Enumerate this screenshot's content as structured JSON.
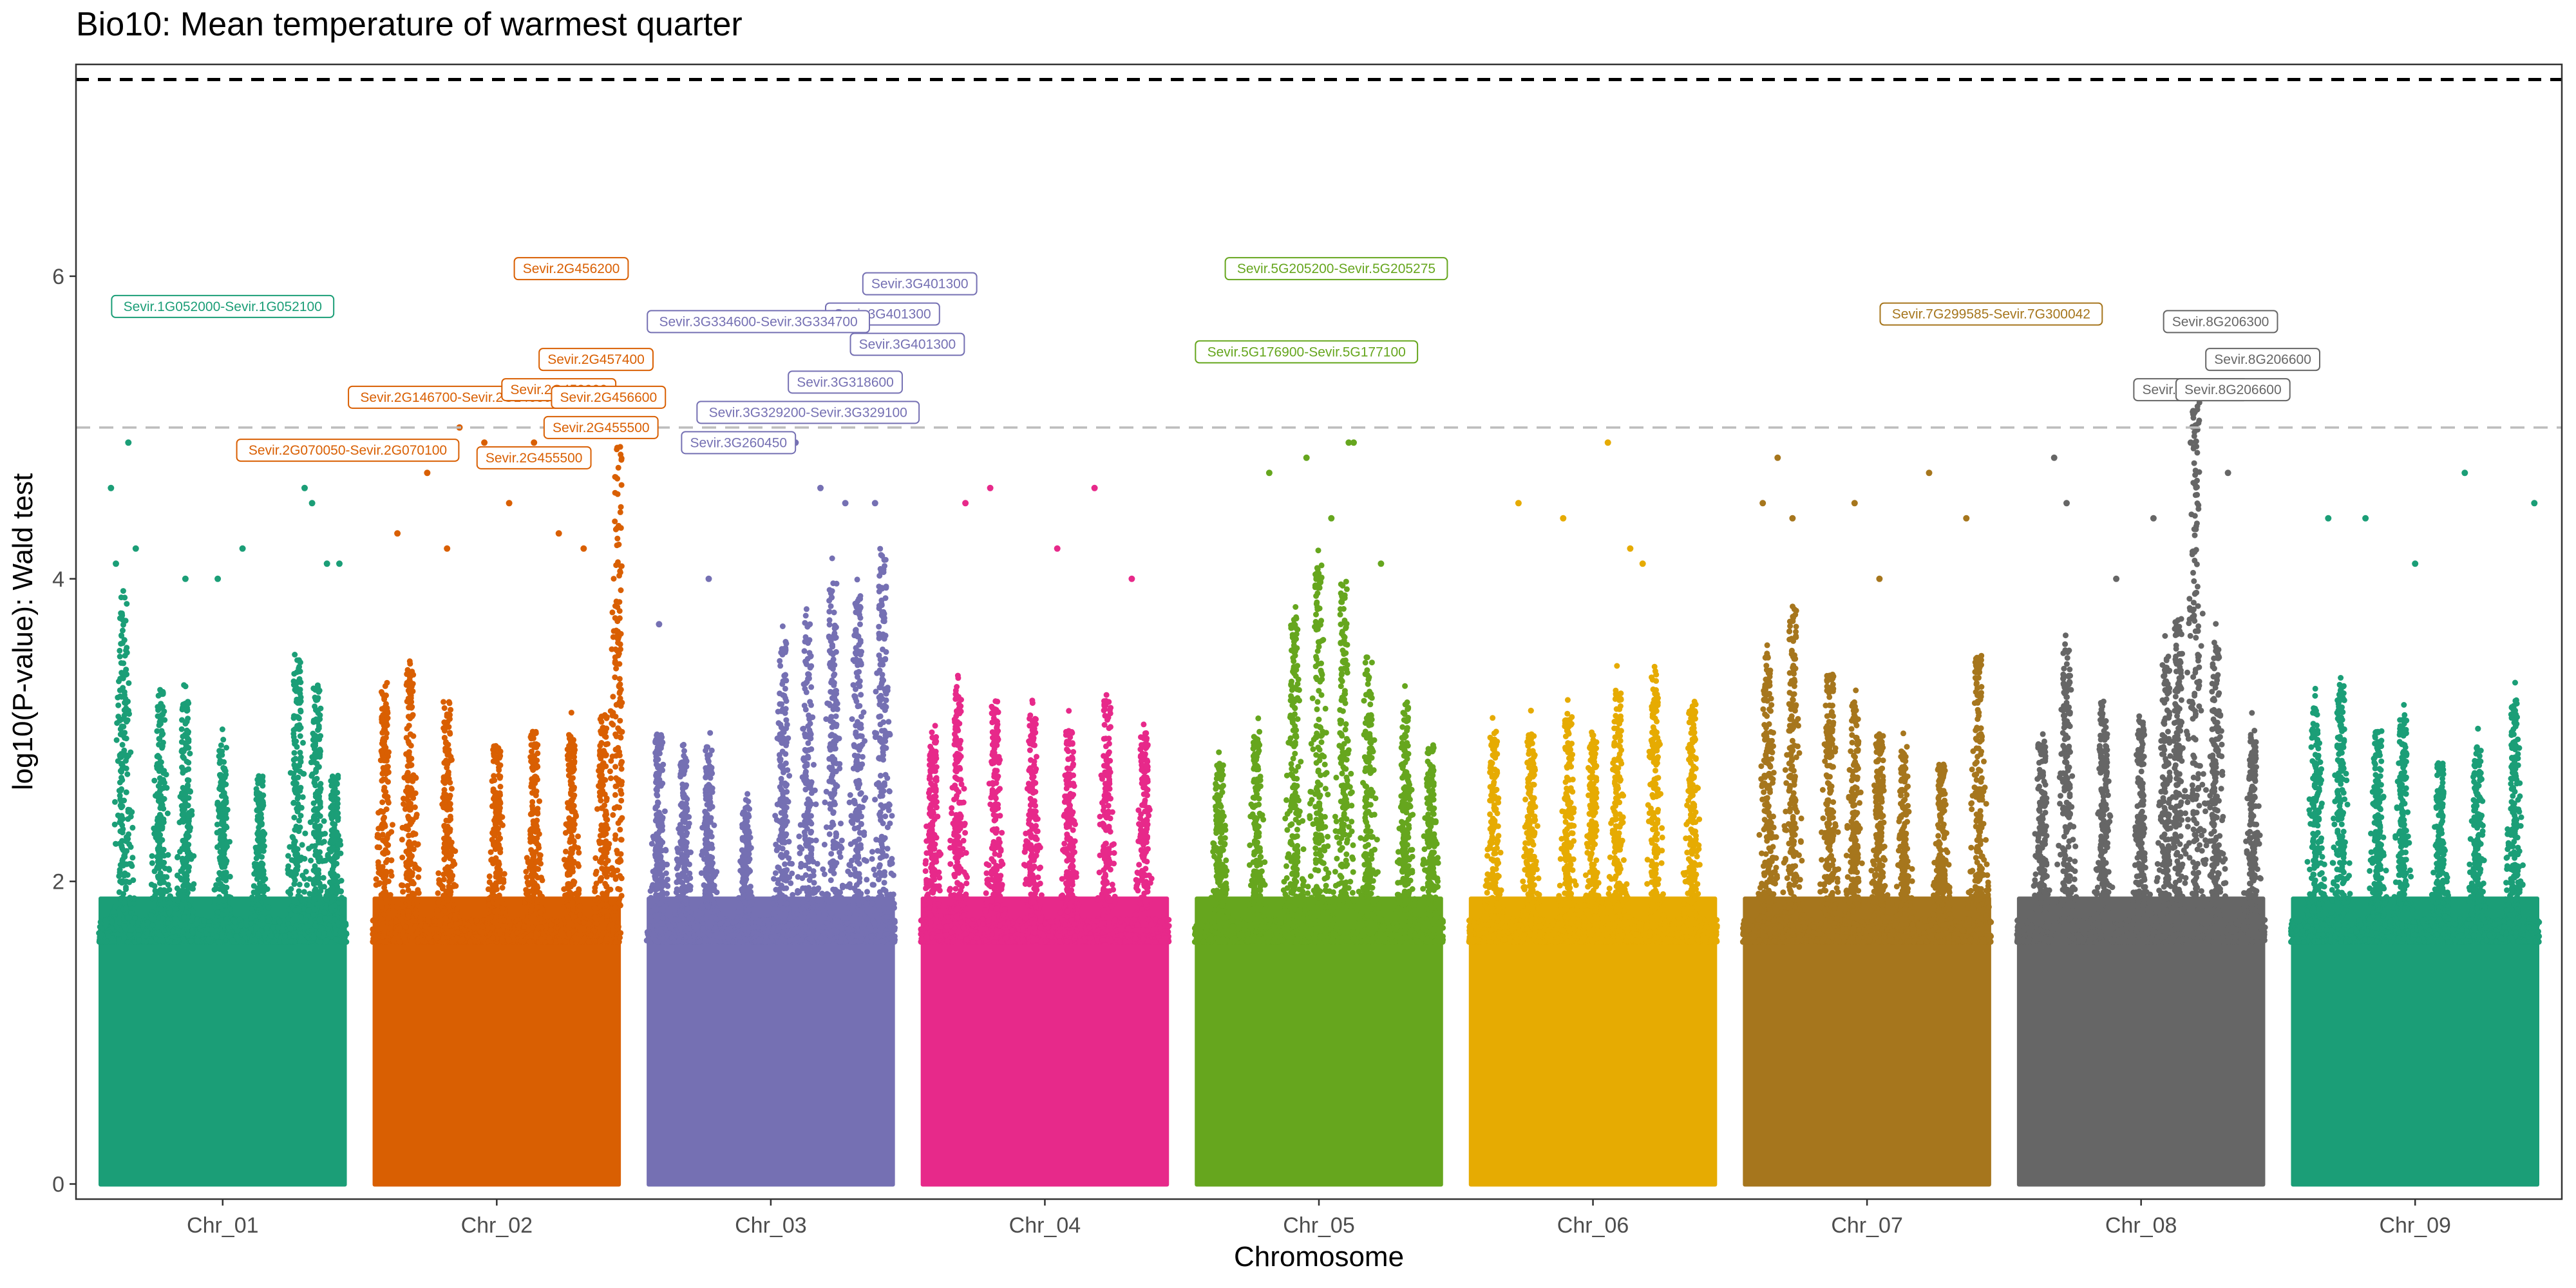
{
  "chart_data": {
    "type": "scatter",
    "subtype": "manhattan",
    "title": "Bio10: Mean temperature of warmest quarter",
    "xlabel": "Chromosome",
    "ylabel": "log10(P-value): Wald test",
    "ylim": [
      -0.1,
      7.4
    ],
    "yticks": [
      0,
      2,
      4,
      6
    ],
    "grid": false,
    "legend": "none",
    "thresholds": [
      {
        "value": 7.3,
        "style": "dashed",
        "color": "#000000"
      },
      {
        "value": 5.0,
        "style": "dashed",
        "color": "#bdbdbd"
      }
    ],
    "chromosomes": [
      {
        "name": "Chr_01",
        "color": "#1b9e77",
        "peaks": [
          [
            0.1,
            3.9
          ],
          [
            0.25,
            3.3
          ],
          [
            0.35,
            3.2
          ],
          [
            0.5,
            2.9
          ],
          [
            0.65,
            2.7
          ],
          [
            0.8,
            3.5
          ],
          [
            0.88,
            3.3
          ],
          [
            0.95,
            2.7
          ]
        ],
        "outliers": [
          [
            0.05,
            4.6
          ],
          [
            0.07,
            4.1
          ],
          [
            0.12,
            4.9
          ],
          [
            0.15,
            4.2
          ],
          [
            0.35,
            4.0
          ],
          [
            0.48,
            4.0
          ],
          [
            0.58,
            4.2
          ],
          [
            0.83,
            4.6
          ],
          [
            0.86,
            4.5
          ],
          [
            0.92,
            4.1
          ],
          [
            0.97,
            4.1
          ]
        ]
      },
      {
        "name": "Chr_02",
        "color": "#d95f02",
        "peaks": [
          [
            0.05,
            3.3
          ],
          [
            0.15,
            3.4
          ],
          [
            0.3,
            3.2
          ],
          [
            0.5,
            2.9
          ],
          [
            0.65,
            3.0
          ],
          [
            0.8,
            3.0
          ],
          [
            0.93,
            3.1
          ],
          [
            0.99,
            4.9
          ]
        ],
        "outliers": [
          [
            0.1,
            4.3
          ],
          [
            0.22,
            4.7
          ],
          [
            0.3,
            4.2
          ],
          [
            0.35,
            5.0
          ],
          [
            0.45,
            4.9
          ],
          [
            0.55,
            4.5
          ],
          [
            0.65,
            4.9
          ],
          [
            0.75,
            4.3
          ],
          [
            0.85,
            4.2
          ],
          [
            0.99,
            5.0
          ]
        ]
      },
      {
        "name": "Chr_03",
        "color": "#7570b3",
        "peaks": [
          [
            0.05,
            3.0
          ],
          [
            0.15,
            2.8
          ],
          [
            0.25,
            2.9
          ],
          [
            0.4,
            2.5
          ],
          [
            0.55,
            3.6
          ],
          [
            0.65,
            3.8
          ],
          [
            0.75,
            4.0
          ],
          [
            0.85,
            3.9
          ],
          [
            0.95,
            4.2
          ]
        ],
        "outliers": [
          [
            0.05,
            3.7
          ],
          [
            0.25,
            4.0
          ],
          [
            0.55,
            4.9
          ],
          [
            0.6,
            4.9
          ],
          [
            0.7,
            4.6
          ],
          [
            0.8,
            4.5
          ],
          [
            0.92,
            4.5
          ]
        ]
      },
      {
        "name": "Chr_04",
        "color": "#e7298a",
        "peaks": [
          [
            0.05,
            3.0
          ],
          [
            0.15,
            3.3
          ],
          [
            0.3,
            3.2
          ],
          [
            0.45,
            3.1
          ],
          [
            0.6,
            3.0
          ],
          [
            0.75,
            3.2
          ],
          [
            0.9,
            3.0
          ]
        ],
        "outliers": [
          [
            0.18,
            4.5
          ],
          [
            0.28,
            4.6
          ],
          [
            0.55,
            4.2
          ],
          [
            0.7,
            4.6
          ],
          [
            0.85,
            4.0
          ]
        ]
      },
      {
        "name": "Chr_05",
        "color": "#66a61e",
        "peaks": [
          [
            0.1,
            2.8
          ],
          [
            0.25,
            3.0
          ],
          [
            0.4,
            3.8
          ],
          [
            0.5,
            4.1
          ],
          [
            0.6,
            4.0
          ],
          [
            0.7,
            3.5
          ],
          [
            0.85,
            3.2
          ],
          [
            0.95,
            2.9
          ]
        ],
        "outliers": [
          [
            0.3,
            4.7
          ],
          [
            0.45,
            4.8
          ],
          [
            0.62,
            4.9
          ],
          [
            0.64,
            4.9
          ],
          [
            0.55,
            4.4
          ],
          [
            0.75,
            4.1
          ]
        ]
      },
      {
        "name": "Chr_06",
        "color": "#e6ab02",
        "peaks": [
          [
            0.1,
            3.0
          ],
          [
            0.25,
            3.0
          ],
          [
            0.4,
            3.1
          ],
          [
            0.5,
            3.0
          ],
          [
            0.6,
            3.3
          ],
          [
            0.75,
            3.4
          ],
          [
            0.9,
            3.2
          ]
        ],
        "outliers": [
          [
            0.2,
            4.5
          ],
          [
            0.38,
            4.4
          ],
          [
            0.56,
            4.9
          ],
          [
            0.65,
            4.2
          ],
          [
            0.7,
            4.1
          ]
        ]
      },
      {
        "name": "Chr_07",
        "color": "#a6761d",
        "peaks": [
          [
            0.1,
            3.5
          ],
          [
            0.2,
            3.8
          ],
          [
            0.35,
            3.4
          ],
          [
            0.45,
            3.2
          ],
          [
            0.55,
            3.0
          ],
          [
            0.65,
            2.9
          ],
          [
            0.8,
            2.8
          ],
          [
            0.95,
            3.5
          ]
        ],
        "outliers": [
          [
            0.08,
            4.5
          ],
          [
            0.14,
            4.8
          ],
          [
            0.2,
            4.4
          ],
          [
            0.45,
            4.5
          ],
          [
            0.55,
            4.0
          ],
          [
            0.75,
            4.7
          ],
          [
            0.9,
            4.4
          ]
        ]
      },
      {
        "name": "Chr_08",
        "color": "#666666",
        "peaks": [
          [
            0.1,
            3.0
          ],
          [
            0.2,
            3.6
          ],
          [
            0.35,
            3.2
          ],
          [
            0.5,
            3.1
          ],
          [
            0.6,
            3.5
          ],
          [
            0.65,
            3.8
          ],
          [
            0.72,
            5.2
          ],
          [
            0.8,
            3.6
          ],
          [
            0.95,
            3.0
          ]
        ],
        "outliers": [
          [
            0.15,
            4.8
          ],
          [
            0.2,
            4.5
          ],
          [
            0.4,
            4.0
          ],
          [
            0.55,
            4.4
          ],
          [
            0.7,
            4.9
          ],
          [
            0.85,
            4.7
          ]
        ]
      },
      {
        "name": "Chr_09",
        "color": "#1b9e77",
        "peaks": [
          [
            0.1,
            3.2
          ],
          [
            0.2,
            3.3
          ],
          [
            0.35,
            3.0
          ],
          [
            0.45,
            3.1
          ],
          [
            0.6,
            2.8
          ],
          [
            0.75,
            2.9
          ],
          [
            0.9,
            3.2
          ]
        ],
        "outliers": [
          [
            0.15,
            4.4
          ],
          [
            0.3,
            4.4
          ],
          [
            0.5,
            4.1
          ],
          [
            0.7,
            4.7
          ],
          [
            0.98,
            4.5
          ]
        ]
      }
    ],
    "gene_labels": [
      {
        "text": "Sevir.1G052000-Sevir.1G052100",
        "chrom": 1,
        "pos": 0.5,
        "y": 5.8
      },
      {
        "text": "Sevir.2G456200",
        "chrom": 2,
        "pos": 0.8,
        "y": 6.05
      },
      {
        "text": "Sevir.2G457400",
        "chrom": 2,
        "pos": 0.9,
        "y": 5.45
      },
      {
        "text": "Sevir.2G146700-Sevir.2G146800",
        "chrom": 2,
        "pos": 0.35,
        "y": 5.2
      },
      {
        "text": "Sevir.2G453900",
        "chrom": 2,
        "pos": 0.75,
        "y": 5.25
      },
      {
        "text": "Sevir.2G456600",
        "chrom": 2,
        "pos": 0.95,
        "y": 5.2
      },
      {
        "text": "Sevir.2G070050-Sevir.2G070100",
        "chrom": 2,
        "pos": -0.1,
        "y": 4.85
      },
      {
        "text": "Sevir.2G455500",
        "chrom": 2,
        "pos": 0.92,
        "y": 5.0
      },
      {
        "text": "Sevir.2G455500",
        "chrom": 2,
        "pos": 0.65,
        "y": 4.8
      },
      {
        "text": "Sevir.3G401300",
        "chrom": 3,
        "pos": 1.1,
        "y": 5.95
      },
      {
        "text": "Sevir.3G401300",
        "chrom": 3,
        "pos": 0.95,
        "y": 5.75
      },
      {
        "text": "Sevir.3G334600-Sevir.3G334700",
        "chrom": 3,
        "pos": 0.45,
        "y": 5.7
      },
      {
        "text": "Sevir.3G401300",
        "chrom": 3,
        "pos": 1.05,
        "y": 5.55
      },
      {
        "text": "Sevir.3G318600",
        "chrom": 3,
        "pos": 0.8,
        "y": 5.3
      },
      {
        "text": "Sevir.3G329200-Sevir.3G329100",
        "chrom": 3,
        "pos": 0.65,
        "y": 5.1
      },
      {
        "text": "Sevir.3G260450",
        "chrom": 3,
        "pos": 0.37,
        "y": 4.9
      },
      {
        "text": "Sevir.5G205200-Sevir.5G205275",
        "chrom": 5,
        "pos": 0.57,
        "y": 6.05
      },
      {
        "text": "Sevir.5G176900-Sevir.5G177100",
        "chrom": 5,
        "pos": 0.45,
        "y": 5.5
      },
      {
        "text": "Sevir.7G299585-Sevir.7G300042",
        "chrom": 7,
        "pos": 1.0,
        "y": 5.75
      },
      {
        "text": "Sevir.8G206300",
        "chrom": 8,
        "pos": 0.82,
        "y": 5.7
      },
      {
        "text": "Sevir.8G206600",
        "chrom": 8,
        "pos": 0.99,
        "y": 5.45
      },
      {
        "text": "Sevir.8G206600",
        "chrom": 8,
        "pos": 0.7,
        "y": 5.25
      },
      {
        "text": "Sevir.8G206600",
        "chrom": 8,
        "pos": 0.87,
        "y": 5.25
      }
    ]
  }
}
